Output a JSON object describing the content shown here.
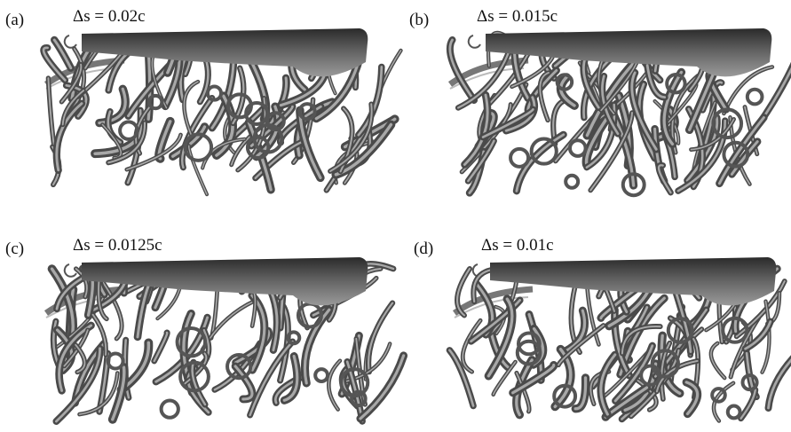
{
  "panels": [
    {
      "label": "(a)",
      "caption": "Δs = 0.02c"
    },
    {
      "label": "(b)",
      "caption": "Δs = 0.015c"
    },
    {
      "label": "(c)",
      "caption": "Δs = 0.0125c"
    },
    {
      "label": "(d)",
      "caption": "Δs = 0.01c"
    }
  ]
}
